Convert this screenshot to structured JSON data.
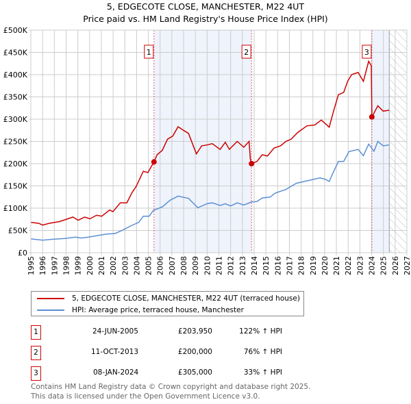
{
  "chart_data": {
    "type": "line",
    "title": "5, EDGECOTE CLOSE, MANCHESTER, M22 4UT",
    "subtitle": "Price paid vs. HM Land Registry's House Price Index (HPI)",
    "xlabel": "",
    "ylabel": "",
    "xlim": [
      1995,
      2027
    ],
    "ylim": [
      0,
      500000
    ],
    "x_ticks": [
      "1995",
      "1996",
      "1997",
      "1998",
      "1999",
      "2000",
      "2001",
      "2002",
      "2003",
      "2004",
      "2005",
      "2006",
      "2007",
      "2008",
      "2009",
      "2010",
      "2011",
      "2012",
      "2013",
      "2014",
      "2015",
      "2016",
      "2017",
      "2018",
      "2019",
      "2020",
      "2021",
      "2022",
      "2023",
      "2024",
      "2025",
      "2026",
      "2027"
    ],
    "y_ticks": [
      {
        "v": 0,
        "label": "£0"
      },
      {
        "v": 50000,
        "label": "£50K"
      },
      {
        "v": 100000,
        "label": "£100K"
      },
      {
        "v": 150000,
        "label": "£150K"
      },
      {
        "v": 200000,
        "label": "£200K"
      },
      {
        "v": 250000,
        "label": "£250K"
      },
      {
        "v": 300000,
        "label": "£300K"
      },
      {
        "v": 350000,
        "label": "£350K"
      },
      {
        "v": 400000,
        "label": "£400K"
      },
      {
        "v": 450000,
        "label": "£450K"
      },
      {
        "v": 500000,
        "label": "£500K"
      }
    ],
    "grid": true,
    "shaded_ranges": [
      [
        2005.48,
        2013.78
      ],
      [
        2024.02,
        2025.5
      ]
    ],
    "forecast_hatch_from": 2025.5,
    "series": [
      {
        "name": "5, EDGECOTE CLOSE, MANCHESTER, M22 4UT (terraced house)",
        "color": "#cc0000",
        "points": [
          [
            1995,
            68
          ],
          [
            1995.67,
            66
          ],
          [
            1996,
            62
          ],
          [
            1996.57,
            66
          ],
          [
            1997.46,
            70
          ],
          [
            1998.58,
            80
          ],
          [
            1999.03,
            73
          ],
          [
            1999.59,
            80
          ],
          [
            2000.03,
            76
          ],
          [
            2000.59,
            84
          ],
          [
            2001.04,
            82
          ],
          [
            2001.71,
            96
          ],
          [
            2001.98,
            92
          ],
          [
            2002.61,
            112
          ],
          [
            2003.17,
            112
          ],
          [
            2003.61,
            135
          ],
          [
            2003.95,
            148
          ],
          [
            2004.57,
            183
          ],
          [
            2004.96,
            180
          ],
          [
            2005.48,
            204
          ],
          [
            2005.74,
            220
          ],
          [
            2006.19,
            230
          ],
          [
            2006.63,
            255
          ],
          [
            2007.08,
            262
          ],
          [
            2007.53,
            283
          ],
          [
            2007.98,
            275
          ],
          [
            2008.42,
            268
          ],
          [
            2009.09,
            222
          ],
          [
            2009.54,
            240
          ],
          [
            2009.99,
            242
          ],
          [
            2010.44,
            245
          ],
          [
            2011.11,
            232
          ],
          [
            2011.55,
            248
          ],
          [
            2011.89,
            232
          ],
          [
            2012.56,
            250
          ],
          [
            2013.12,
            237
          ],
          [
            2013.57,
            250
          ],
          [
            2013.68,
            210
          ],
          [
            2013.78,
            200
          ],
          [
            2014.24,
            205
          ],
          [
            2014.69,
            220
          ],
          [
            2015.13,
            217
          ],
          [
            2015.69,
            235
          ],
          [
            2016.25,
            240
          ],
          [
            2016.7,
            250
          ],
          [
            2017.15,
            255
          ],
          [
            2017.71,
            270
          ],
          [
            2018.49,
            285
          ],
          [
            2019.16,
            287
          ],
          [
            2019.72,
            298
          ],
          [
            2020.39,
            282
          ],
          [
            2020.73,
            315
          ],
          [
            2021.17,
            355
          ],
          [
            2021.62,
            360
          ],
          [
            2021.96,
            385
          ],
          [
            2022.29,
            400
          ],
          [
            2022.85,
            405
          ],
          [
            2023.3,
            385
          ],
          [
            2023.75,
            430
          ],
          [
            2023.97,
            420
          ],
          [
            2024.02,
            305
          ],
          [
            2024.53,
            330
          ],
          [
            2024.98,
            318
          ],
          [
            2025.49,
            320
          ]
        ]
      },
      {
        "name": "HPI: Average price, terraced house, Manchester",
        "color": "#5b8fd4",
        "points": [
          [
            1995,
            31
          ],
          [
            1996,
            28
          ],
          [
            1996.79,
            30
          ],
          [
            1997.91,
            32
          ],
          [
            1998.8,
            35
          ],
          [
            1999.25,
            33
          ],
          [
            1999.92,
            35
          ],
          [
            2000.59,
            38
          ],
          [
            2001.49,
            42
          ],
          [
            2002.16,
            43
          ],
          [
            2002.83,
            51
          ],
          [
            2003.5,
            60
          ],
          [
            2004.17,
            68
          ],
          [
            2004.57,
            82
          ],
          [
            2005.07,
            82
          ],
          [
            2005.43,
            95
          ],
          [
            2006.19,
            103
          ],
          [
            2006.86,
            118
          ],
          [
            2007.53,
            127
          ],
          [
            2008.42,
            122
          ],
          [
            2009.21,
            101
          ],
          [
            2009.99,
            110
          ],
          [
            2010.44,
            112
          ],
          [
            2011.11,
            106
          ],
          [
            2011.55,
            110
          ],
          [
            2012,
            105
          ],
          [
            2012.56,
            112
          ],
          [
            2013.12,
            107
          ],
          [
            2013.79,
            114
          ],
          [
            2014.24,
            115
          ],
          [
            2014.69,
            123
          ],
          [
            2015.36,
            125
          ],
          [
            2015.81,
            134
          ],
          [
            2016.7,
            142
          ],
          [
            2017.6,
            156
          ],
          [
            2018.27,
            160
          ],
          [
            2018.94,
            164
          ],
          [
            2019.61,
            168
          ],
          [
            2020.06,
            165
          ],
          [
            2020.39,
            160
          ],
          [
            2020.73,
            180
          ],
          [
            2021.17,
            205
          ],
          [
            2021.62,
            205
          ],
          [
            2022.07,
            227
          ],
          [
            2022.85,
            232
          ],
          [
            2023.3,
            218
          ],
          [
            2023.75,
            244
          ],
          [
            2024.2,
            228
          ],
          [
            2024.53,
            250
          ],
          [
            2024.98,
            240
          ],
          [
            2025.49,
            242
          ]
        ]
      }
    ],
    "point_units": "thousand GBP",
    "sales": [
      {
        "label": "1",
        "date": "24-JUN-2005",
        "x": 2005.48,
        "price_value": 203950,
        "price": "£203,950",
        "hpi": "122% ↑ HPI"
      },
      {
        "label": "2",
        "date": "11-OCT-2013",
        "x": 2013.78,
        "price_value": 200000,
        "price": "£200,000",
        "hpi": "76% ↑ HPI"
      },
      {
        "label": "3",
        "date": "08-JAN-2024",
        "x": 2024.02,
        "price_value": 305000,
        "price": "£305,000",
        "hpi": "33% ↑ HPI"
      }
    ]
  },
  "footer": {
    "line1": "Contains HM Land Registry data © Crown copyright and database right 2025.",
    "line2": "This data is licensed under the Open Government Licence v3.0."
  }
}
